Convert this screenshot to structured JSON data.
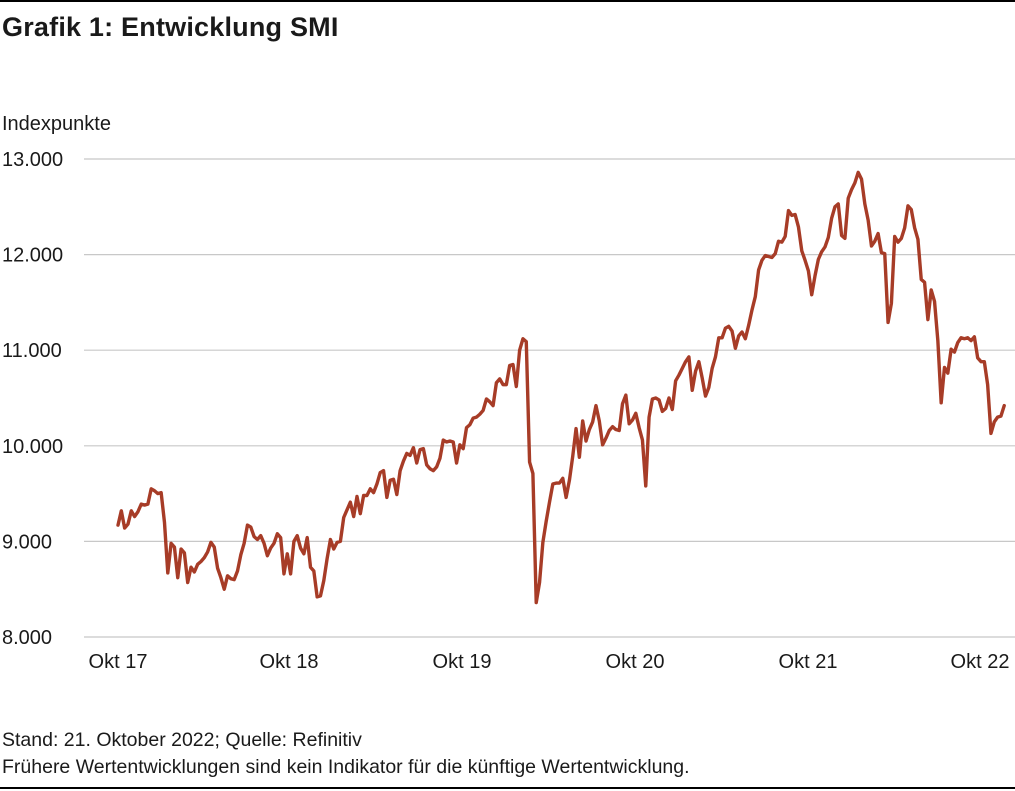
{
  "title": "Grafik 1: Entwicklung SMI",
  "footer": {
    "source": "Stand: 21. Oktober 2022; Quelle: Refinitiv",
    "disclaimer": "Frühere Wertentwicklungen sind kein Indikator für die künftige Wertentwicklung."
  },
  "chart_data": {
    "type": "line",
    "title": "Grafik 1: Entwicklung SMI",
    "xlabel": "",
    "ylabel": "Indexpunkte",
    "ylim": [
      8000,
      13000
    ],
    "yticks": [
      8000,
      9000,
      10000,
      11000,
      12000,
      13000
    ],
    "ytick_labels": [
      "8.000",
      "9.000",
      "10.000",
      "11.000",
      "12.000",
      "13.000"
    ],
    "xtick_labels": [
      "Okt 17",
      "Okt 18",
      "Okt 19",
      "Okt 20",
      "Okt 21",
      "Okt 22"
    ],
    "grid": "horizontal",
    "line_color": "#a73c27",
    "series": [
      {
        "x_start": "2017-10",
        "step": "1 week",
        "values": [
          9170,
          9320,
          9140,
          9180,
          9320,
          9260,
          9310,
          9390,
          9380,
          9390,
          9550,
          9530,
          9500,
          9510,
          9200,
          8670,
          8980,
          8940,
          8620,
          8920,
          8880,
          8570,
          8730,
          8680,
          8760,
          8790,
          8830,
          8890,
          8990,
          8940,
          8720,
          8620,
          8500,
          8640,
          8610,
          8600,
          8690,
          8860,
          8980,
          9170,
          9150,
          9050,
          9020,
          9060,
          8980,
          8850,
          8930,
          8980,
          9080,
          9040,
          8660,
          8870,
          8660,
          9000,
          9060,
          8930,
          8870,
          9040,
          8730,
          8690,
          8420,
          8430,
          8590,
          8820,
          9020,
          8920,
          8990,
          9000,
          9250,
          9330,
          9410,
          9260,
          9470,
          9290,
          9480,
          9480,
          9550,
          9510,
          9600,
          9720,
          9740,
          9460,
          9640,
          9650,
          9490,
          9740,
          9840,
          9920,
          9900,
          9980,
          9820,
          9960,
          9970,
          9800,
          9760,
          9740,
          9780,
          9870,
          10060,
          10040,
          10050,
          10040,
          9820,
          10010,
          9970,
          10190,
          10220,
          10290,
          10300,
          10330,
          10370,
          10490,
          10460,
          10420,
          10660,
          10700,
          10640,
          10640,
          10840,
          10850,
          10620,
          11000,
          11120,
          11090,
          9830,
          9710,
          8360,
          8570,
          8990,
          9210,
          9410,
          9600,
          9610,
          9610,
          9660,
          9460,
          9640,
          9890,
          10180,
          9880,
          10260,
          10050,
          10170,
          10250,
          10420,
          10260,
          10010,
          10080,
          10160,
          10200,
          10170,
          10160,
          10440,
          10530,
          10230,
          10270,
          10340,
          10190,
          10060,
          9580,
          10300,
          10490,
          10500,
          10480,
          10360,
          10390,
          10500,
          10380,
          10680,
          10740,
          10810,
          10880,
          10930,
          10580,
          10780,
          10880,
          10710,
          10520,
          10610,
          10810,
          10930,
          11130,
          11130,
          11230,
          11250,
          11200,
          11020,
          11150,
          11190,
          11120,
          11260,
          11420,
          11560,
          11840,
          11940,
          11990,
          11980,
          11970,
          12010,
          12140,
          12130,
          12190,
          12460,
          12410,
          12420,
          12290,
          12040,
          11940,
          11830,
          11580,
          11780,
          11950,
          12030,
          12080,
          12180,
          12380,
          12500,
          12530,
          12200,
          12170,
          12590,
          12680,
          12750,
          12860,
          12790,
          12530,
          12360,
          12090,
          12140,
          12220,
          12020,
          12010,
          11290,
          11490,
          12190,
          12130,
          12170,
          12280,
          12510,
          12470,
          12280,
          12160,
          11740,
          11710,
          11320,
          11630,
          11510,
          11100,
          10450,
          10820,
          10760,
          11010,
          10980,
          11080,
          11130,
          11120,
          11130,
          11100,
          11140,
          10920,
          10880,
          10880,
          10640,
          10130,
          10250,
          10300,
          10310,
          10420
        ]
      }
    ]
  }
}
